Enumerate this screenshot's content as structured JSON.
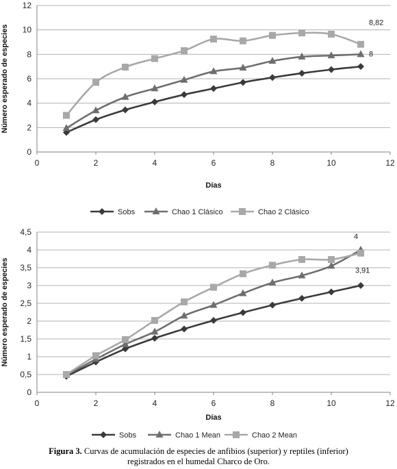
{
  "chart_data": [
    {
      "type": "line",
      "title": "",
      "xlabel": "Días",
      "ylabel": "Número esperado de especies",
      "xlim": [
        0,
        12
      ],
      "ylim": [
        0,
        12
      ],
      "xticks": [
        "0",
        "2",
        "4",
        "6",
        "8",
        "10",
        "12"
      ],
      "yticks": [
        "0",
        "2",
        "4",
        "6",
        "8",
        "10",
        "12"
      ],
      "grid": "horizontal",
      "legend": "bottom",
      "x": [
        1,
        2,
        3,
        4,
        5,
        6,
        7,
        8,
        9,
        10,
        11
      ],
      "series": [
        {
          "name": "Sobs",
          "marker": "diamond",
          "color": "#3a3a3a",
          "values": [
            1.6,
            2.65,
            3.45,
            4.1,
            4.7,
            5.2,
            5.7,
            6.1,
            6.45,
            6.75,
            7.0
          ]
        },
        {
          "name": "Chao 1 Clásico",
          "marker": "triangle",
          "color": "#6e6e6e",
          "values": [
            1.95,
            3.4,
            4.5,
            5.2,
            5.9,
            6.6,
            6.9,
            7.45,
            7.8,
            7.9,
            8.0
          ]
        },
        {
          "name": "Chao 2 Clásico",
          "marker": "square",
          "color": "#a8a8a8",
          "values": [
            3.0,
            5.7,
            6.95,
            7.65,
            8.3,
            9.25,
            9.1,
            9.55,
            9.75,
            9.65,
            8.82
          ]
        }
      ],
      "annotations": [
        {
          "text": "8,82",
          "x": 11,
          "y": 8.82
        },
        {
          "text": "8",
          "x": 11,
          "y": 8.0
        }
      ]
    },
    {
      "type": "line",
      "title": "",
      "xlabel": "Días",
      "ylabel": "Número esperado de especies",
      "xlim": [
        0,
        12
      ],
      "ylim": [
        0,
        4.5
      ],
      "xticks": [
        "0",
        "2",
        "4",
        "6",
        "8",
        "10",
        "12"
      ],
      "yticks": [
        "0",
        "0,5",
        "1",
        "1,5",
        "2",
        "2,5",
        "3",
        "3,5",
        "4",
        "4,5"
      ],
      "grid": "horizontal",
      "legend": "bottom",
      "x": [
        1,
        2,
        3,
        4,
        5,
        6,
        7,
        8,
        9,
        10,
        11
      ],
      "series": [
        {
          "name": "Sobs",
          "marker": "diamond",
          "color": "#3a3a3a",
          "values": [
            0.45,
            0.85,
            1.22,
            1.52,
            1.78,
            2.02,
            2.24,
            2.45,
            2.64,
            2.82,
            3.0
          ]
        },
        {
          "name": "Chao 1 Mean",
          "marker": "triangle",
          "color": "#6e6e6e",
          "values": [
            0.48,
            0.93,
            1.35,
            1.7,
            2.15,
            2.45,
            2.78,
            3.08,
            3.28,
            3.55,
            4.0
          ]
        },
        {
          "name": "Chao 2 Mean",
          "marker": "square",
          "color": "#a8a8a8",
          "values": [
            0.5,
            1.03,
            1.48,
            2.02,
            2.54,
            2.95,
            3.33,
            3.57,
            3.73,
            3.73,
            3.91
          ]
        }
      ],
      "annotations": [
        {
          "text": "4",
          "x": 11,
          "y": 4.0
        },
        {
          "text": "3,91",
          "x": 11,
          "y": 3.91
        }
      ]
    }
  ],
  "caption": {
    "label": "Figura 3.",
    "line1": "Curvas de acumulación de especies de anfibios (superior)  y reptiles (inferior)",
    "line2": "registrados en el humedal Charco de Oro."
  }
}
